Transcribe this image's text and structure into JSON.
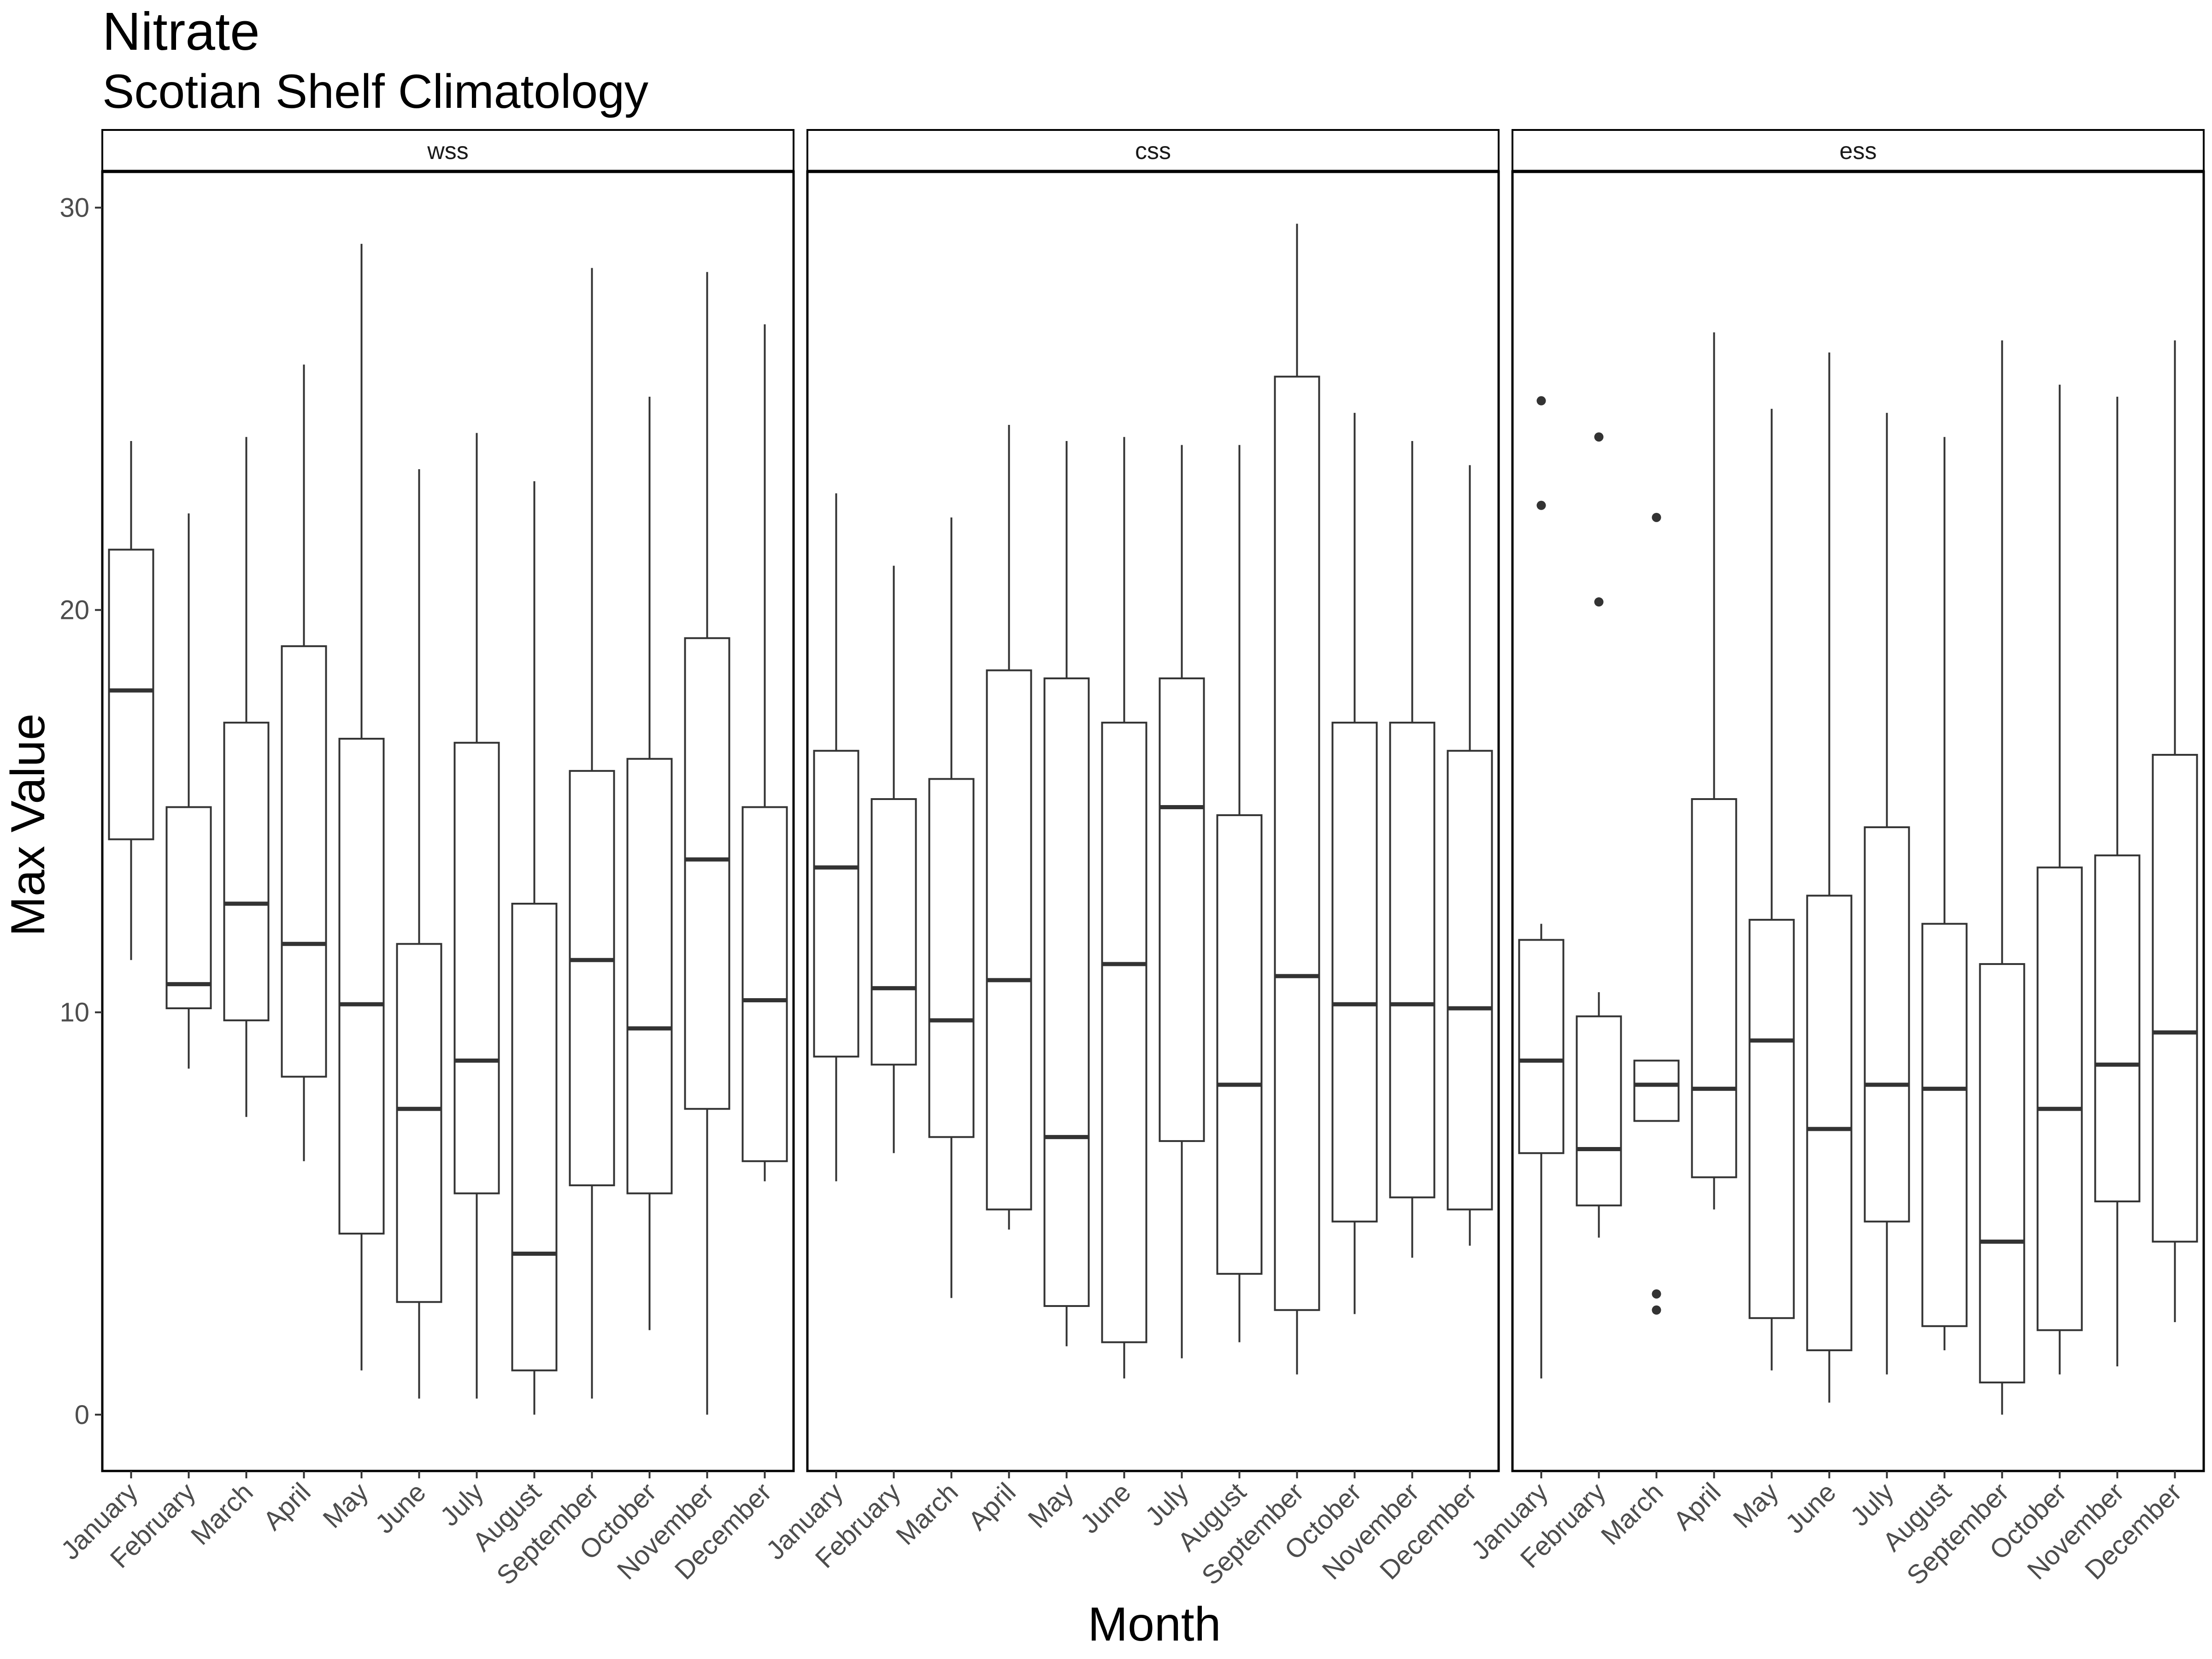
{
  "chart_data": {
    "type": "boxplot",
    "title": "Nitrate",
    "subtitle": "Scotian Shelf Climatology",
    "xlabel": "Month",
    "ylabel": "Max Value",
    "ylim": [
      -1.4,
      30.9
    ],
    "yticks": [
      0,
      10,
      20,
      30
    ],
    "grid": false,
    "categories": [
      "January",
      "February",
      "March",
      "April",
      "May",
      "June",
      "July",
      "August",
      "September",
      "October",
      "November",
      "December"
    ],
    "panels": [
      {
        "name": "wss",
        "boxes": [
          {
            "min": 11.3,
            "q1": 14.3,
            "median": 18.0,
            "q3": 21.5,
            "max": 24.2,
            "outliers": []
          },
          {
            "min": 8.6,
            "q1": 10.1,
            "median": 10.7,
            "q3": 15.1,
            "max": 22.4,
            "outliers": []
          },
          {
            "min": 7.4,
            "q1": 9.8,
            "median": 12.7,
            "q3": 17.2,
            "max": 24.3,
            "outliers": []
          },
          {
            "min": 6.3,
            "q1": 8.4,
            "median": 11.7,
            "q3": 19.1,
            "max": 26.1,
            "outliers": []
          },
          {
            "min": 1.1,
            "q1": 4.5,
            "median": 10.2,
            "q3": 16.8,
            "max": 29.1,
            "outliers": []
          },
          {
            "min": 0.4,
            "q1": 2.8,
            "median": 7.6,
            "q3": 11.7,
            "max": 23.5,
            "outliers": []
          },
          {
            "min": 0.4,
            "q1": 5.5,
            "median": 8.8,
            "q3": 16.7,
            "max": 24.4,
            "outliers": []
          },
          {
            "min": 0.0,
            "q1": 1.1,
            "median": 4.0,
            "q3": 12.7,
            "max": 23.2,
            "outliers": []
          },
          {
            "min": 0.4,
            "q1": 5.7,
            "median": 11.3,
            "q3": 16.0,
            "max": 28.5,
            "outliers": []
          },
          {
            "min": 2.1,
            "q1": 5.5,
            "median": 9.6,
            "q3": 16.3,
            "max": 25.3,
            "outliers": []
          },
          {
            "min": 0.0,
            "q1": 7.6,
            "median": 13.8,
            "q3": 19.3,
            "max": 28.4,
            "outliers": []
          },
          {
            "min": 5.8,
            "q1": 6.3,
            "median": 10.3,
            "q3": 15.1,
            "max": 27.1,
            "outliers": []
          }
        ]
      },
      {
        "name": "css",
        "boxes": [
          {
            "min": 5.8,
            "q1": 8.9,
            "median": 13.6,
            "q3": 16.5,
            "max": 22.9,
            "outliers": []
          },
          {
            "min": 6.5,
            "q1": 8.7,
            "median": 10.6,
            "q3": 15.3,
            "max": 21.1,
            "outliers": []
          },
          {
            "min": 2.9,
            "q1": 6.9,
            "median": 9.8,
            "q3": 15.8,
            "max": 22.3,
            "outliers": []
          },
          {
            "min": 4.6,
            "q1": 5.1,
            "median": 10.8,
            "q3": 18.5,
            "max": 24.6,
            "outliers": []
          },
          {
            "min": 1.7,
            "q1": 2.7,
            "median": 6.9,
            "q3": 18.3,
            "max": 24.2,
            "outliers": []
          },
          {
            "min": 0.9,
            "q1": 1.8,
            "median": 11.2,
            "q3": 17.2,
            "max": 24.3,
            "outliers": []
          },
          {
            "min": 1.4,
            "q1": 6.8,
            "median": 15.1,
            "q3": 18.3,
            "max": 24.1,
            "outliers": []
          },
          {
            "min": 1.8,
            "q1": 3.5,
            "median": 8.2,
            "q3": 14.9,
            "max": 24.1,
            "outliers": []
          },
          {
            "min": 1.0,
            "q1": 2.6,
            "median": 10.9,
            "q3": 25.8,
            "max": 29.6,
            "outliers": []
          },
          {
            "min": 2.5,
            "q1": 4.8,
            "median": 10.2,
            "q3": 17.2,
            "max": 24.9,
            "outliers": []
          },
          {
            "min": 3.9,
            "q1": 5.4,
            "median": 10.2,
            "q3": 17.2,
            "max": 24.2,
            "outliers": []
          },
          {
            "min": 4.2,
            "q1": 5.1,
            "median": 10.1,
            "q3": 16.5,
            "max": 23.6,
            "outliers": []
          }
        ]
      },
      {
        "name": "ess",
        "boxes": [
          {
            "min": 0.9,
            "q1": 6.5,
            "median": 8.8,
            "q3": 11.8,
            "max": 12.2,
            "outliers": [
              22.6,
              25.2
            ]
          },
          {
            "min": 4.4,
            "q1": 5.2,
            "median": 6.6,
            "q3": 9.9,
            "max": 10.5,
            "outliers": [
              20.2,
              24.3
            ]
          },
          {
            "min": 7.3,
            "q1": 7.3,
            "median": 8.2,
            "q3": 8.8,
            "max": 8.8,
            "outliers": [
              2.6,
              3.0,
              22.3
            ]
          },
          {
            "min": 5.1,
            "q1": 5.9,
            "median": 8.1,
            "q3": 15.3,
            "max": 26.9,
            "outliers": []
          },
          {
            "min": 1.1,
            "q1": 2.4,
            "median": 9.3,
            "q3": 12.3,
            "max": 25.0,
            "outliers": []
          },
          {
            "min": 0.3,
            "q1": 1.6,
            "median": 7.1,
            "q3": 12.9,
            "max": 26.4,
            "outliers": []
          },
          {
            "min": 1.0,
            "q1": 4.8,
            "median": 8.2,
            "q3": 14.6,
            "max": 24.9,
            "outliers": []
          },
          {
            "min": 1.6,
            "q1": 2.2,
            "median": 8.1,
            "q3": 12.2,
            "max": 24.3,
            "outliers": []
          },
          {
            "min": 0.0,
            "q1": 0.8,
            "median": 4.3,
            "q3": 11.2,
            "max": 26.7,
            "outliers": []
          },
          {
            "min": 1.0,
            "q1": 2.1,
            "median": 7.6,
            "q3": 13.6,
            "max": 25.6,
            "outliers": []
          },
          {
            "min": 1.2,
            "q1": 5.3,
            "median": 8.7,
            "q3": 13.9,
            "max": 25.3,
            "outliers": []
          },
          {
            "min": 2.3,
            "q1": 4.3,
            "median": 9.5,
            "q3": 16.4,
            "max": 26.7,
            "outliers": []
          }
        ]
      }
    ]
  },
  "colors": {
    "box_line": "#333333",
    "panel_border": "#000000",
    "tick_label": "#4d4d4d",
    "background": "#ffffff"
  }
}
